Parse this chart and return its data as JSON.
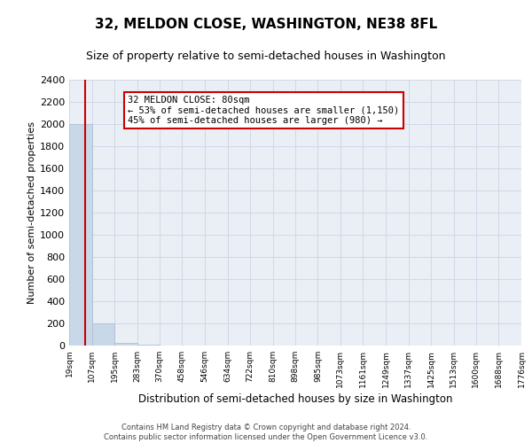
{
  "title": "32, MELDON CLOSE, WASHINGTON, NE38 8FL",
  "subtitle": "Size of property relative to semi-detached houses in Washington",
  "xlabel": "Distribution of semi-detached houses by size in Washington",
  "ylabel": "Number of semi-detached properties",
  "property_size": 80,
  "annotation_text": "32 MELDON CLOSE: 80sqm\n← 53% of semi-detached houses are smaller (1,150)\n45% of semi-detached houses are larger (980) →",
  "bin_edges": [
    19,
    107,
    195,
    283,
    370,
    458,
    546,
    634,
    722,
    810,
    898,
    985,
    1073,
    1161,
    1249,
    1337,
    1425,
    1513,
    1600,
    1688,
    1776
  ],
  "bar_heights": [
    2000,
    200,
    25,
    5,
    2,
    1,
    1,
    0,
    0,
    0,
    0,
    0,
    0,
    0,
    0,
    0,
    0,
    0,
    0,
    0
  ],
  "bar_color": "#c8d8e8",
  "bar_edgecolor": "#aabbcc",
  "grid_color": "#d0d8e8",
  "bg_color": "#eaeff5",
  "vline_color": "#cc0000",
  "annotation_box_edgecolor": "#cc0000",
  "ylim": [
    0,
    2400
  ],
  "yticks": [
    0,
    200,
    400,
    600,
    800,
    1000,
    1200,
    1400,
    1600,
    1800,
    2000,
    2200,
    2400
  ],
  "footer_line1": "Contains HM Land Registry data © Crown copyright and database right 2024.",
  "footer_line2": "Contains public sector information licensed under the Open Government Licence v3.0.",
  "tick_labels": [
    "19sqm",
    "107sqm",
    "195sqm",
    "283sqm",
    "370sqm",
    "458sqm",
    "546sqm",
    "634sqm",
    "722sqm",
    "810sqm",
    "898sqm",
    "985sqm",
    "1073sqm",
    "1161sqm",
    "1249sqm",
    "1337sqm",
    "1425sqm",
    "1513sqm",
    "1600sqm",
    "1688sqm",
    "1776sqm"
  ]
}
